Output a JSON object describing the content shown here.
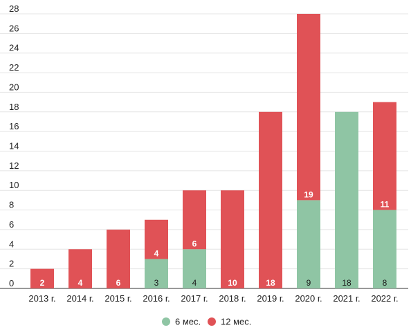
{
  "chart_data": {
    "type": "bar",
    "stacked": true,
    "categories": [
      "2013 г.",
      "2014 г.",
      "2015 г.",
      "2016 г.",
      "2017 г.",
      "2018 г.",
      "2019 г.",
      "2020 г.",
      "2021 г.",
      "2022 г."
    ],
    "series": [
      {
        "name": "6 мес.",
        "color": "#8fc5a4",
        "values": [
          0,
          0,
          0,
          3,
          4,
          0,
          0,
          9,
          18,
          8
        ],
        "labels": [
          "",
          "",
          "",
          "3",
          "4",
          "",
          "",
          "9",
          "18",
          "8"
        ]
      },
      {
        "name": "12 мес.",
        "color": "#e05256",
        "values": [
          2,
          4,
          6,
          4,
          6,
          10,
          18,
          19,
          0,
          11
        ],
        "labels": [
          "2",
          "4",
          "6",
          "4",
          "6",
          "10",
          "18",
          "19",
          "",
          "11"
        ]
      }
    ],
    "yticks": [
      "0",
      "2",
      "4",
      "6",
      "8",
      "10",
      "12",
      "14",
      "16",
      "18",
      "20",
      "22",
      "24",
      "26",
      "28"
    ],
    "ylim": [
      0,
      28
    ],
    "grid": true,
    "legend_position": "bottom"
  }
}
